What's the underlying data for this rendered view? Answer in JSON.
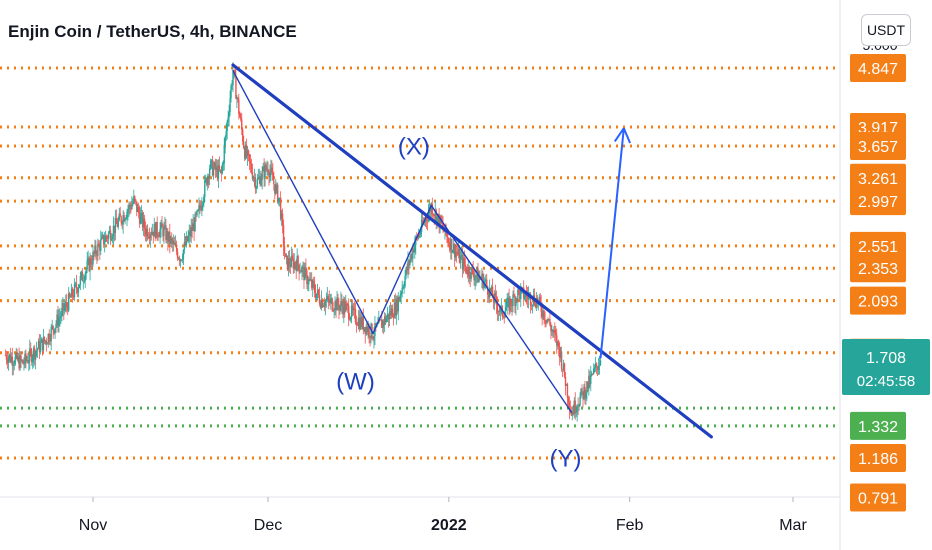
{
  "header": {
    "title": "Enjin Coin / TetherUS, 4h, BINANCE",
    "currency": "USDT"
  },
  "colors": {
    "orange": "#f57f17",
    "green_level": "#4caf50",
    "price_badge": "#26a69a",
    "up_candle": "#26a69a",
    "down_candle": "#ef5350",
    "trend_line": "#1f3fbf",
    "projection": "#2962ff",
    "axis_text": "#131722"
  },
  "chart_data": {
    "type": "candlestick",
    "title": "Enjin Coin / TetherUS, 4h, BINANCE",
    "x_axis": {
      "ticks": [
        "Nov",
        "Dec",
        "2022",
        "Feb",
        "Mar"
      ]
    },
    "y_axis": {
      "scale": "log",
      "top_partial_label": "5.000",
      "bottom_partial_label": "0.791",
      "orange_levels": [
        "4.847",
        "3.917",
        "3.657",
        "3.261",
        "2.997",
        "2.551",
        "2.353",
        "2.093",
        "1.734",
        "1.186"
      ],
      "green_levels": [
        "1.332"
      ],
      "current_price": "1.708",
      "countdown": "02:45:58"
    },
    "wave_labels": [
      "(W)",
      "(X)",
      "(Y)"
    ],
    "range": {
      "start": "2021-10-17",
      "end": "2022-03-01"
    },
    "price_path": [
      [
        "2021-10-17",
        1.72
      ],
      [
        "2021-10-20",
        1.67
      ],
      [
        "2021-10-24",
        1.82
      ],
      [
        "2021-10-28",
        2.1
      ],
      [
        "2021-11-02",
        2.55
      ],
      [
        "2021-11-05",
        2.75
      ],
      [
        "2021-11-08",
        3.0
      ],
      [
        "2021-11-10",
        2.7
      ],
      [
        "2021-11-13",
        2.7
      ],
      [
        "2021-11-16",
        2.45
      ],
      [
        "2021-11-19",
        2.85
      ],
      [
        "2021-11-21",
        3.4
      ],
      [
        "2021-11-23",
        3.3
      ],
      [
        "2021-11-25",
        4.8
      ],
      [
        "2021-11-27",
        3.6
      ],
      [
        "2021-11-29",
        3.2
      ],
      [
        "2021-12-01",
        3.4
      ],
      [
        "2021-12-03",
        3.0
      ],
      [
        "2021-12-04",
        2.4
      ],
      [
        "2021-12-06",
        2.4
      ],
      [
        "2021-12-10",
        2.1
      ],
      [
        "2021-12-14",
        2.05
      ],
      [
        "2021-12-19",
        1.86
      ],
      [
        "2021-12-23",
        2.05
      ],
      [
        "2021-12-26",
        2.55
      ],
      [
        "2021-12-29",
        2.95
      ],
      [
        "2022-01-01",
        2.6
      ],
      [
        "2022-01-04",
        2.35
      ],
      [
        "2022-01-07",
        2.25
      ],
      [
        "2022-01-10",
        2.0
      ],
      [
        "2022-01-13",
        2.15
      ],
      [
        "2022-01-16",
        2.1
      ],
      [
        "2022-01-18",
        1.95
      ],
      [
        "2022-01-20",
        1.75
      ],
      [
        "2022-01-22",
        1.4
      ],
      [
        "2022-01-25",
        1.55
      ],
      [
        "2022-01-27",
        1.7
      ]
    ]
  }
}
